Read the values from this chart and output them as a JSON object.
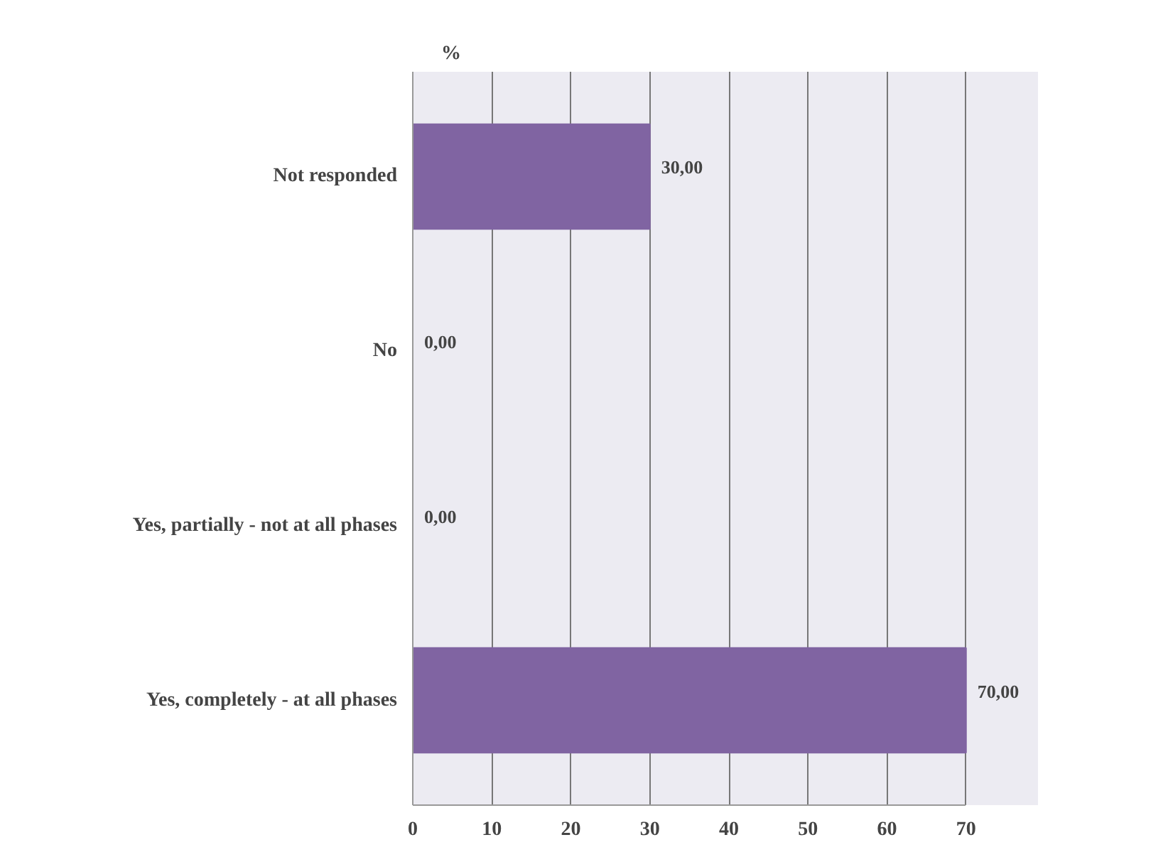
{
  "chart_data": {
    "type": "bar",
    "orientation": "horizontal",
    "xlabel": "%",
    "categories": [
      "Not responded",
      "No",
      "Yes, partially - not at all phases",
      "Yes, completely - at all phases"
    ],
    "values": [
      30,
      0,
      0,
      70
    ],
    "value_labels": [
      "30,00",
      "0,00",
      "0,00",
      "70,00"
    ],
    "color": "#8064a2",
    "xlim": [
      0,
      70
    ],
    "xticks": [
      0,
      10,
      20,
      30,
      40,
      50,
      60,
      70
    ],
    "grid": "x"
  }
}
